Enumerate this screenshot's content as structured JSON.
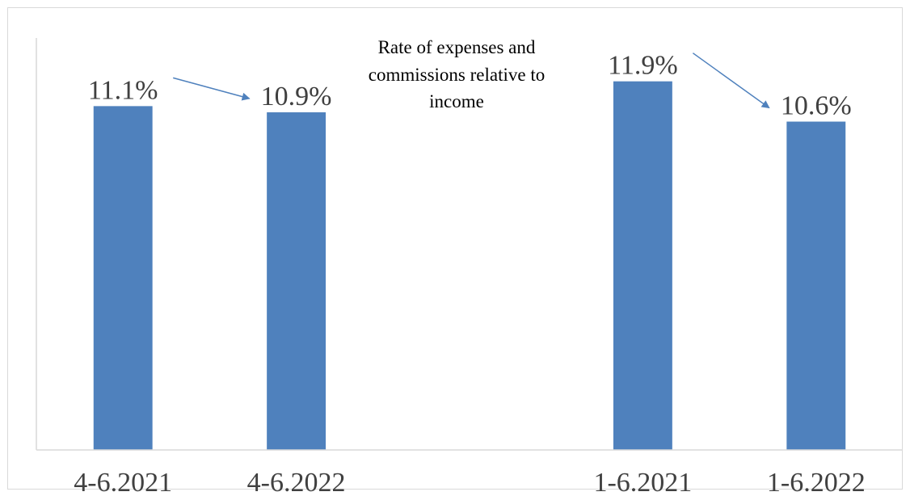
{
  "chart_data": {
    "type": "bar",
    "title": "Rate of expenses and commissions relative to income",
    "title_lines": [
      "Rate of expenses and",
      "commissions relative to",
      "income"
    ],
    "categories": [
      "4-6.2021",
      "4-6.2022",
      "",
      "1-6.2021",
      "1-6.2022"
    ],
    "values": [
      11.1,
      10.9,
      null,
      11.9,
      10.6
    ],
    "data_labels": [
      "11.1%",
      "10.9%",
      "",
      "11.9%",
      "10.6%"
    ],
    "ylim": [
      0,
      13.3
    ],
    "grid": false,
    "legend": "none",
    "colors": {
      "bar": "#4f81bd",
      "arrow": "#4f81bd",
      "axis": "#d9d9d9",
      "text": "#404040"
    },
    "annotations": [
      {
        "type": "arrow",
        "from": "4-6.2021",
        "to": "4-6.2022"
      },
      {
        "type": "arrow",
        "from": "1-6.2021",
        "to": "1-6.2022"
      }
    ]
  }
}
